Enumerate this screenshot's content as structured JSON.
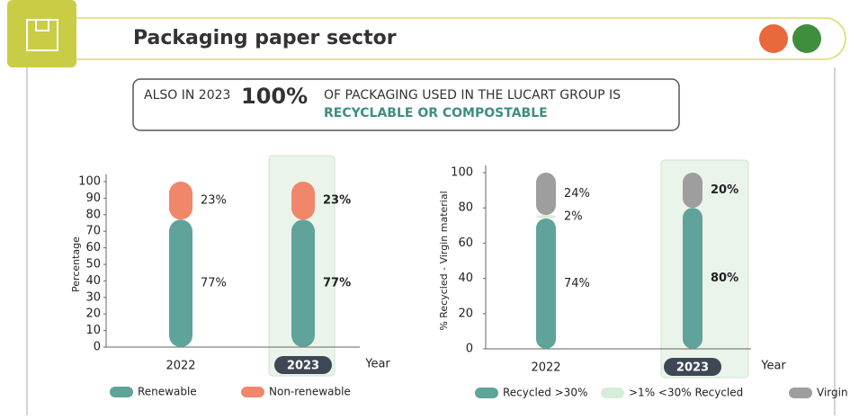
{
  "header": {
    "title": "Packaging paper sector"
  },
  "banner": {
    "lead": "ALSO IN 2023",
    "figure": "100%",
    "text": "OF PACKAGING USED IN THE LUCART GROUP IS",
    "highlight": "RECYCLABLE OR COMPOSTABLE"
  },
  "chart_data": [
    {
      "type": "bar",
      "stacked": true,
      "categories": [
        "2022",
        "2023"
      ],
      "y_label": "Percentage",
      "x_label": "Year",
      "ylim": [
        0,
        100
      ],
      "yticks": [
        0,
        10,
        20,
        30,
        40,
        50,
        60,
        70,
        80,
        90,
        100
      ],
      "series": [
        {
          "name": "Renewable",
          "color": "#5fa39a",
          "values": [
            77,
            77
          ],
          "value_labels": [
            "77%",
            "77%"
          ]
        },
        {
          "name": "Non-renewable",
          "color": "#f0876a",
          "values": [
            23,
            23
          ],
          "value_labels": [
            "23%",
            "23%"
          ]
        }
      ]
    },
    {
      "type": "bar",
      "stacked": true,
      "categories": [
        "2022",
        "2023"
      ],
      "y_label": "% Recycled - Virgin material",
      "x_label": "Year",
      "ylim": [
        0,
        100
      ],
      "yticks": [
        0,
        20,
        40,
        60,
        80,
        100
      ],
      "series": [
        {
          "name": "Recycled >30%",
          "color": "#5fa39a",
          "values": [
            74,
            80
          ],
          "value_labels": [
            "74%",
            "80%"
          ]
        },
        {
          "name": ">1% <30% Recycled",
          "color": "#d6edd9",
          "values": [
            2,
            null
          ],
          "value_labels": [
            "2%",
            null
          ]
        },
        {
          "name": "Virgin",
          "color": "#9e9e9e",
          "values": [
            24,
            20
          ],
          "value_labels": [
            "24%",
            "20%"
          ]
        }
      ]
    }
  ]
}
